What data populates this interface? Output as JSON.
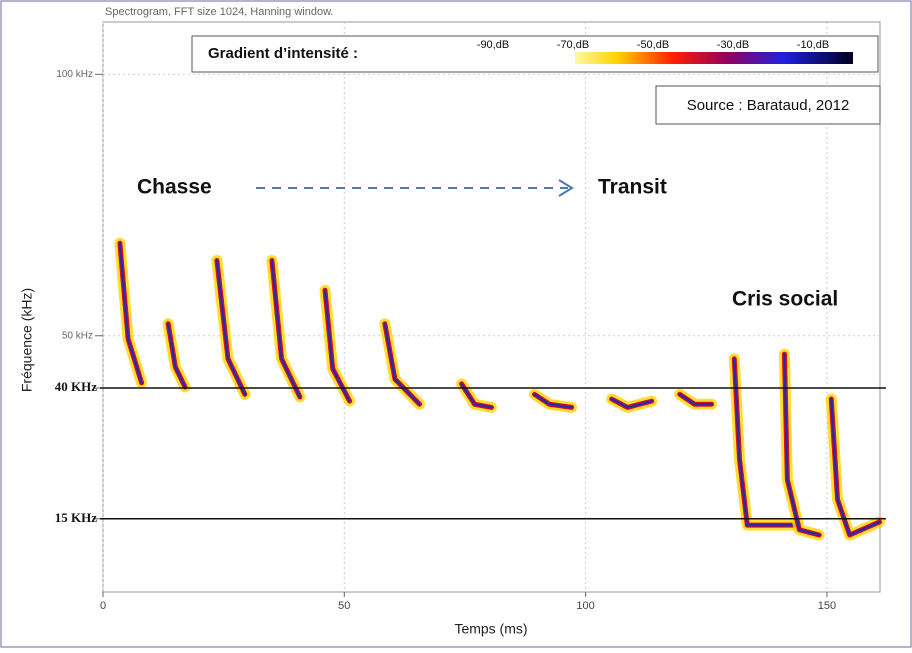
{
  "chart_data": {
    "type": "spectrogram",
    "title": "Spectrogram, FFT size 1024, Hanning window.",
    "x_label": "Temps  (ms)",
    "y_label": "Fréquence (kHz)",
    "xlim": [
      0,
      161
    ],
    "ylim": [
      1,
      110
    ],
    "xticks": [
      0,
      50,
      100,
      150
    ],
    "yticks": [
      {
        "value": 100,
        "label": "100 kHz"
      },
      {
        "value": 50,
        "label": "50 kHz"
      },
      {
        "value": 40,
        "label": "40 KHz"
      },
      {
        "value": 15,
        "label": "15 KHz"
      }
    ],
    "hlines": [
      40,
      15
    ],
    "grid": true,
    "call_colors": [
      "#ffd400",
      "#d81010",
      "#2a2ab0"
    ],
    "legend": {
      "title": "Gradient d’intensité :",
      "ticks": [
        {
          "value": -90,
          "label": "-90,dB"
        },
        {
          "value": -70,
          "label": "-70,dB"
        },
        {
          "value": -50,
          "label": "-50,dB"
        },
        {
          "value": -30,
          "label": "-30,dB"
        },
        {
          "value": -10,
          "label": "-10,dB"
        }
      ]
    },
    "source": "Source : Barataud, 2012",
    "annotations": [
      "Chasse",
      "Transit",
      "Cris social"
    ],
    "series": [
      {
        "x": [
          3.5,
          5.2,
          8
        ],
        "values": [
          67.7,
          49.4,
          41
        ]
      },
      {
        "x": [
          13.5,
          15,
          17
        ],
        "values": [
          52.3,
          44,
          40.2
        ]
      },
      {
        "x": [
          23.6,
          25.9,
          29.4
        ],
        "values": [
          64.4,
          45.6,
          38.8
        ]
      },
      {
        "x": [
          35,
          37,
          40.8
        ],
        "values": [
          64.4,
          45.6,
          38.3
        ]
      },
      {
        "x": [
          46,
          47.6,
          51.1
        ],
        "values": [
          58.7,
          43.7,
          37.5
        ]
      },
      {
        "x": [
          58.4,
          60.5,
          65.6
        ],
        "values": [
          52.3,
          41.7,
          36.9
        ]
      },
      {
        "x": [
          74.3,
          77,
          80.5
        ],
        "values": [
          40.8,
          36.9,
          36.3
        ]
      },
      {
        "x": [
          89.4,
          92.5,
          97.1
        ],
        "values": [
          38.8,
          36.9,
          36.3
        ]
      },
      {
        "x": [
          105.4,
          108.7,
          113.7
        ],
        "values": [
          37.9,
          36.3,
          37.5
        ]
      },
      {
        "x": [
          119.5,
          122.6,
          126.1
        ],
        "values": [
          38.8,
          36.9,
          36.9
        ]
      },
      {
        "x": [
          130.8,
          131.9,
          133.5,
          136,
          143.3
        ],
        "values": [
          45.6,
          26.3,
          13.8,
          13.8,
          13.8
        ]
      },
      {
        "x": [
          141.2,
          141.8,
          144.3,
          148.4
        ],
        "values": [
          46.5,
          22.5,
          12.9,
          11.9
        ]
      },
      {
        "x": [
          150.9,
          152.2,
          154.7,
          160.9
        ],
        "values": [
          37.9,
          18.7,
          11.9,
          14.4
        ]
      }
    ]
  }
}
